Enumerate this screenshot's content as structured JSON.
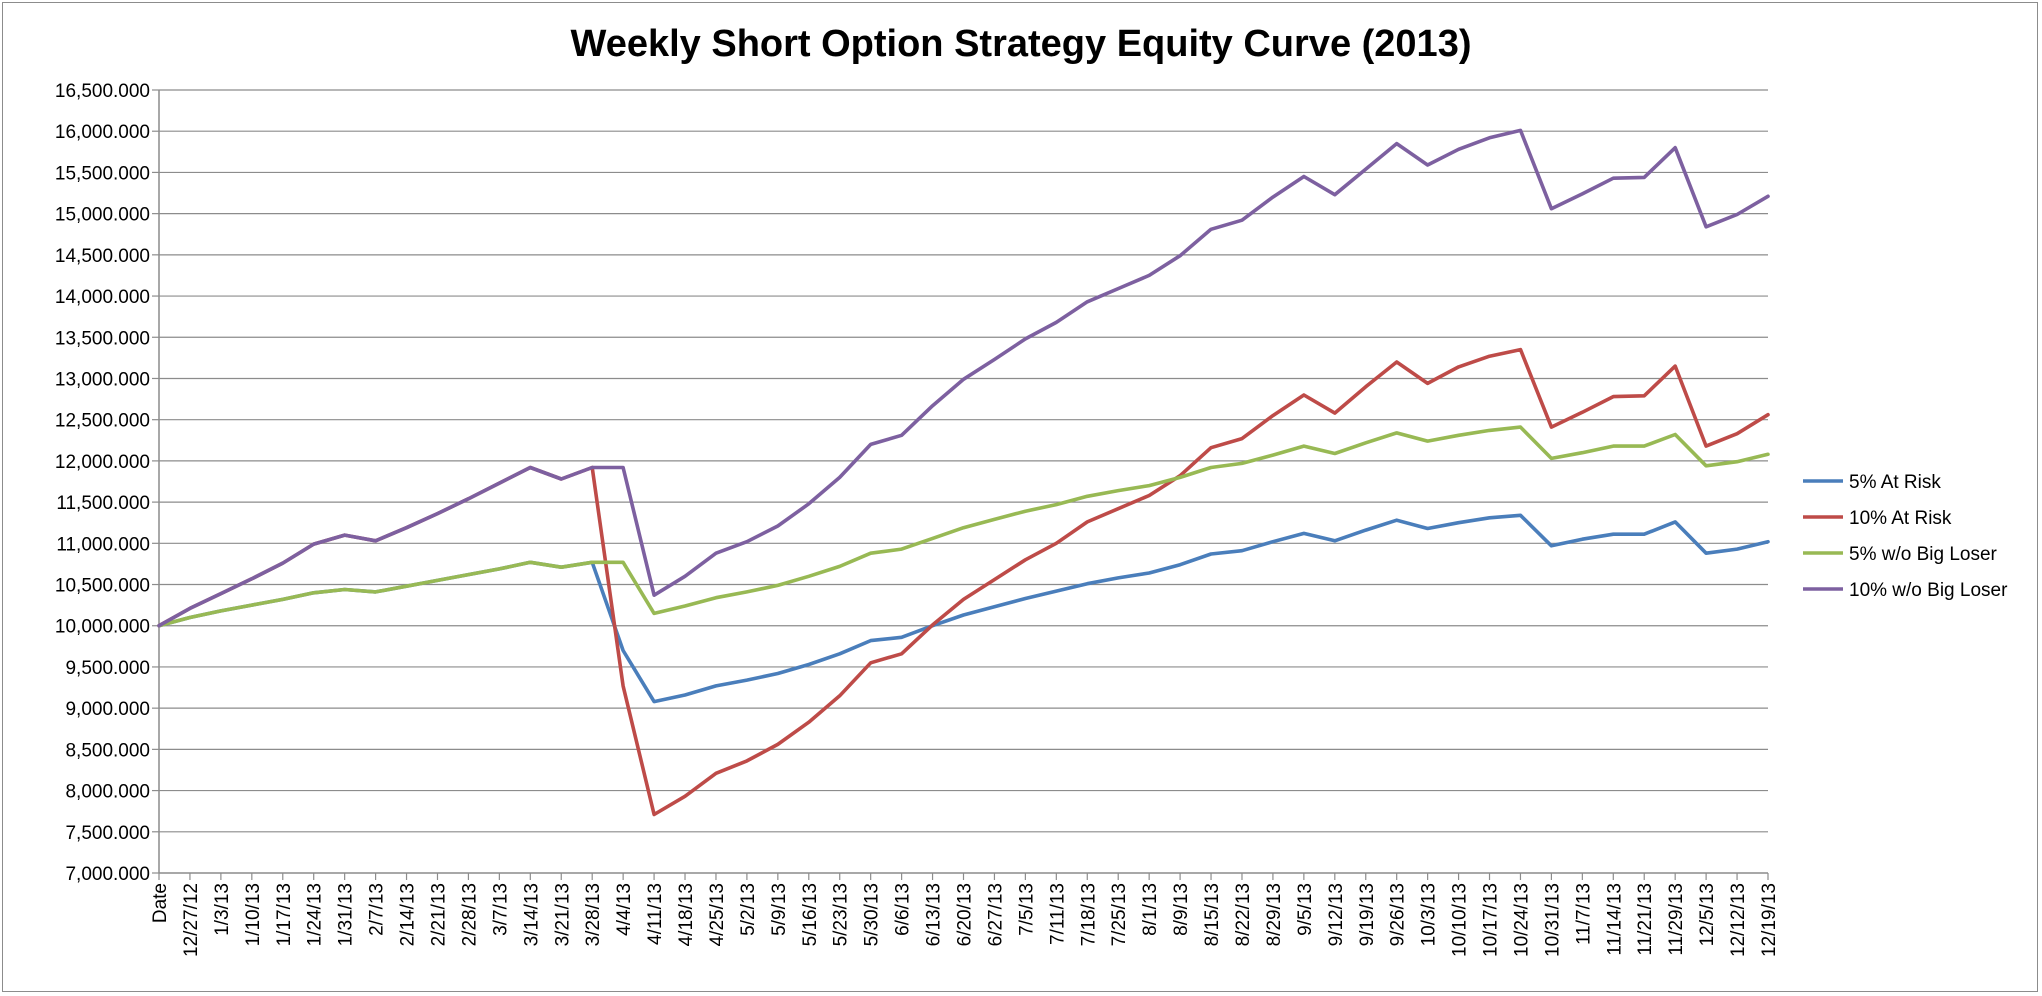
{
  "chart_data": {
    "type": "line",
    "title": "Weekly Short Option Strategy Equity Curve (2013)",
    "xlabel": "",
    "ylabel": "",
    "ylim": [
      7000,
      16500
    ],
    "y_ticks": [
      7000,
      7500,
      8000,
      8500,
      9000,
      9500,
      10000,
      10500,
      11000,
      11500,
      12000,
      12500,
      13000,
      13500,
      14000,
      14500,
      15000,
      15500,
      16000,
      16500
    ],
    "y_tick_labels": [
      "7,000.000",
      "7,500.000",
      "8,000.000",
      "8,500.000",
      "9,000.000",
      "9,500.000",
      "10,000.000",
      "10,500.000",
      "11,000.000",
      "11,500.000",
      "12,000.000",
      "12,500.000",
      "13,000.000",
      "13,500.000",
      "14,000.000",
      "14,500.000",
      "15,000.000",
      "15,500.000",
      "16,000.000",
      "16,500.000"
    ],
    "grid": true,
    "legend_position": "right",
    "categories": [
      "Date",
      "12/27/12",
      "1/3/13",
      "1/10/13",
      "1/17/13",
      "1/24/13",
      "1/31/13",
      "2/7/13",
      "2/14/13",
      "2/21/13",
      "2/28/13",
      "3/7/13",
      "3/14/13",
      "3/21/13",
      "3/28/13",
      "4/4/13",
      "4/11/13",
      "4/18/13",
      "4/25/13",
      "5/2/13",
      "5/9/13",
      "5/16/13",
      "5/23/13",
      "5/30/13",
      "6/6/13",
      "6/13/13",
      "6/20/13",
      "6/27/13",
      "7/5/13",
      "7/11/13",
      "7/18/13",
      "7/25/13",
      "8/1/13",
      "8/9/13",
      "8/15/13",
      "8/22/13",
      "8/29/13",
      "9/5/13",
      "9/12/13",
      "9/19/13",
      "9/26/13",
      "10/3/13",
      "10/10/13",
      "10/17/13",
      "10/24/13",
      "10/31/13",
      "11/7/13",
      "11/14/13",
      "11/21/13",
      "11/29/13",
      "12/5/13",
      "12/12/13",
      "12/19/13"
    ],
    "series": [
      {
        "name": "5% At Risk",
        "color": "#4a7ebb",
        "values": [
          10000,
          10100,
          10180,
          10250,
          10320,
          10400,
          10440,
          10410,
          10480,
          10550,
          10620,
          10690,
          10770,
          10710,
          10770,
          9700,
          9080,
          9160,
          9270,
          9340,
          9420,
          9530,
          9660,
          9820,
          9860,
          10000,
          10130,
          10230,
          10330,
          10420,
          10510,
          10580,
          10640,
          10740,
          10870,
          10910,
          11020,
          11120,
          11030,
          11160,
          11280,
          11180,
          11250,
          11310,
          11340,
          10970,
          11050,
          11110,
          11110,
          11260,
          10880,
          10930,
          11020
        ]
      },
      {
        "name": "10% At Risk",
        "color": "#be4b48",
        "values": [
          10000,
          10210,
          10390,
          10570,
          10760,
          10990,
          11100,
          11030,
          11190,
          11360,
          11540,
          11730,
          11920,
          11780,
          11920,
          9270,
          7710,
          7930,
          8210,
          8360,
          8560,
          8830,
          9150,
          9550,
          9660,
          10010,
          10320,
          10560,
          10800,
          11000,
          11260,
          11420,
          11580,
          11820,
          12160,
          12270,
          12550,
          12800,
          12580,
          12900,
          13200,
          12940,
          13140,
          13270,
          13350,
          12410,
          12590,
          12780,
          12790,
          13150,
          12180,
          12330,
          12560
        ]
      },
      {
        "name": "5% w/o Big Loser",
        "color": "#98b954",
        "values": [
          10000,
          10100,
          10180,
          10250,
          10320,
          10400,
          10440,
          10410,
          10480,
          10550,
          10620,
          10690,
          10770,
          10710,
          10770,
          10770,
          10150,
          10240,
          10340,
          10410,
          10490,
          10600,
          10720,
          10880,
          10930,
          11060,
          11190,
          11290,
          11390,
          11470,
          11570,
          11640,
          11700,
          11800,
          11920,
          11970,
          12070,
          12180,
          12090,
          12220,
          12340,
          12240,
          12310,
          12370,
          12410,
          12030,
          12100,
          12180,
          12180,
          12320,
          11940,
          11990,
          12080
        ]
      },
      {
        "name": "10% w/o Big Loser",
        "color": "#7d60a0",
        "values": [
          10000,
          10210,
          10390,
          10570,
          10760,
          10990,
          11100,
          11030,
          11190,
          11360,
          11540,
          11730,
          11920,
          11780,
          11920,
          11920,
          10370,
          10600,
          10880,
          11020,
          11210,
          11480,
          11800,
          12200,
          12310,
          12670,
          12990,
          13230,
          13480,
          13680,
          13930,
          14090,
          14250,
          14490,
          14810,
          14920,
          15200,
          15450,
          15230,
          15540,
          15850,
          15590,
          15780,
          15920,
          16010,
          15060,
          15240,
          15430,
          15440,
          15800,
          14840,
          14990,
          15210
        ]
      }
    ]
  }
}
